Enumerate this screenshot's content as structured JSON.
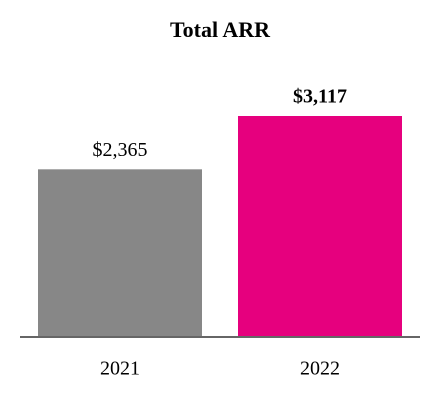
{
  "chart_data": {
    "type": "bar",
    "title": "Total ARR",
    "categories": [
      "2021",
      "2022"
    ],
    "values": [
      2365,
      3117
    ],
    "value_labels": [
      "$2,365",
      "$3,117"
    ],
    "colors": [
      "#878787",
      "#e6007e"
    ]
  }
}
